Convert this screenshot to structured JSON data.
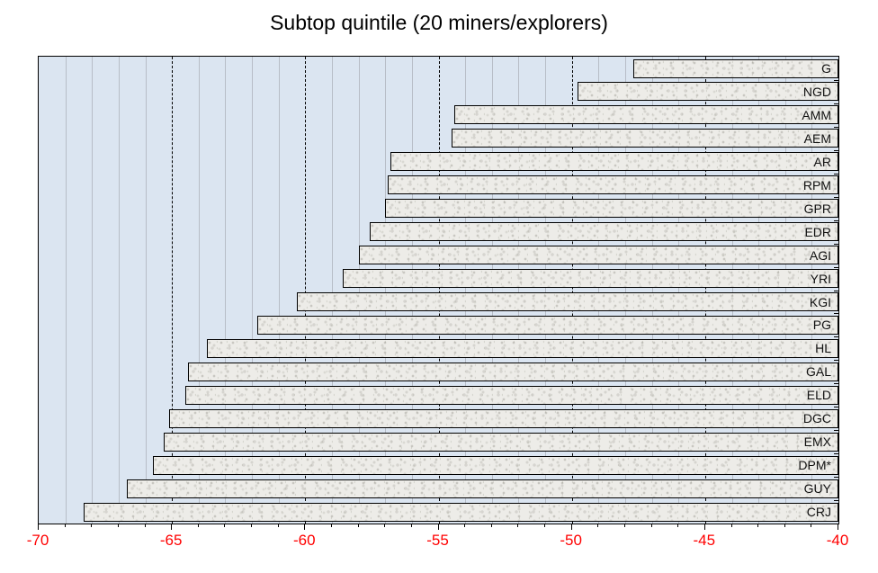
{
  "title": "Subtop quintile (20 miners/explorers)",
  "chart_data": {
    "type": "bar",
    "orientation": "horizontal",
    "bars_anchor": "right",
    "title": "Subtop quintile (20 miners/explorers)",
    "categories": [
      "G",
      "NGD",
      "AMM",
      "AEM",
      "AR",
      "RPM",
      "GPR",
      "EDR",
      "AGI",
      "YRI",
      "KGI",
      "PG",
      "HL",
      "GAL",
      "ELD",
      "DGC",
      "EMX",
      "DPM*",
      "GUY",
      "CRJ"
    ],
    "values": [
      -47.7,
      -49.8,
      -54.4,
      -54.5,
      -56.8,
      -56.9,
      -57.0,
      -57.6,
      -58.0,
      -58.6,
      -60.3,
      -61.8,
      -63.7,
      -64.4,
      -64.5,
      -65.1,
      -65.3,
      -65.7,
      -66.7,
      -68.3
    ],
    "xlabel": "",
    "ylabel": "",
    "value_axis": {
      "min": -70,
      "max": -40,
      "major_step": 5,
      "minor_step": 1,
      "tick_labels": [
        "-70",
        "-65",
        "-60",
        "-55",
        "-50",
        "-45",
        "-40"
      ],
      "tick_label_color": "#ff0000"
    },
    "legend": "none",
    "grid": "minor solid gray every 1, major dashed black every 5",
    "colors": {
      "plot_background": "#dbe5f1",
      "minor_gridline": "#b7bdc7",
      "major_gridline": "#000000",
      "bar_fill_base": "#edece8",
      "bar_border": "#000000",
      "axis_line": "#000000",
      "title_text": "#000000",
      "bar_label_text": "#111111"
    }
  }
}
